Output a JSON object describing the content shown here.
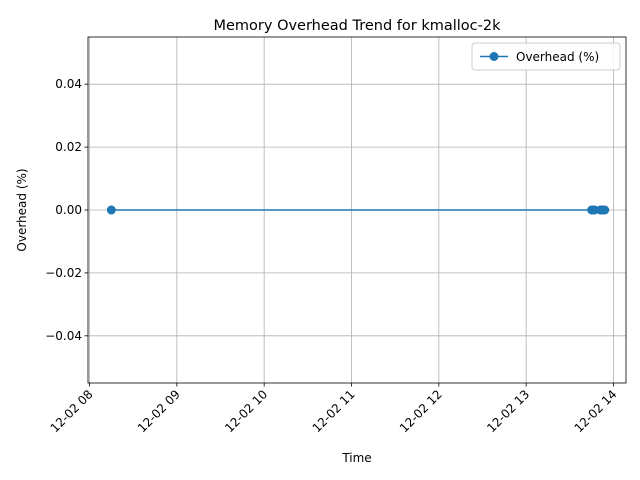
{
  "chart_data": {
    "type": "line",
    "title": "Memory Overhead Trend for kmalloc-2k",
    "xlabel": "Time",
    "ylabel": "Overhead (%)",
    "x_tick_labels": [
      "12-02 08",
      "12-02 09",
      "12-02 10",
      "12-02 11",
      "12-02 12",
      "12-02 13",
      "12-02 14"
    ],
    "y_tick_labels": [
      "−0.04",
      "−0.02",
      "0.00",
      "0.02",
      "0.04"
    ],
    "y_ticks": [
      -0.04,
      -0.02,
      0.0,
      0.02,
      0.04
    ],
    "xlim": [
      "12-02 08:00",
      "12-02 14:00"
    ],
    "ylim": [
      -0.055,
      0.055
    ],
    "grid": true,
    "legend_position": "top-right",
    "series": [
      {
        "name": "Overhead (%)",
        "color": "#1f77b4",
        "marker": "circle",
        "points": [
          {
            "x": "12-02 08:15",
            "y": 0.0
          },
          {
            "x": "12-02 13:45",
            "y": 0.0
          },
          {
            "x": "12-02 13:46",
            "y": 0.0
          },
          {
            "x": "12-02 13:47",
            "y": 0.0
          },
          {
            "x": "12-02 13:51",
            "y": 0.0
          },
          {
            "x": "12-02 13:52",
            "y": 0.0
          },
          {
            "x": "12-02 13:53",
            "y": 0.0
          },
          {
            "x": "12-02 13:54",
            "y": 0.0
          }
        ]
      }
    ]
  }
}
